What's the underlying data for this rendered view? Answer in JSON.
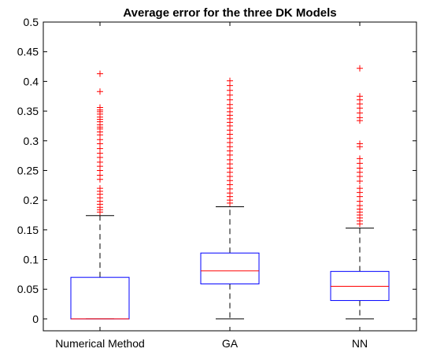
{
  "chart_data": {
    "type": "box",
    "title": "Average error for the three DK Models",
    "xlabel": "",
    "ylabel": "",
    "ylim": [
      -0.02,
      0.5
    ],
    "yticks": [
      0,
      0.05,
      0.1,
      0.15,
      0.2,
      0.25,
      0.3,
      0.35,
      0.4,
      0.45,
      0.5
    ],
    "ytick_labels": [
      "0",
      "0.05",
      "0.1",
      "0.15",
      "0.2",
      "0.25",
      "0.3",
      "0.35",
      "0.4",
      "0.45",
      "0.5"
    ],
    "categories": [
      "Numerical Method",
      "GA",
      "NN"
    ],
    "grid": false,
    "colors": {
      "box": "#0000ff",
      "median": "#ff0000",
      "whisker": "#000000",
      "outlier": "#ff0000"
    },
    "boxes": [
      {
        "category": "Numerical Method",
        "whisker_low": 0,
        "q1": 0,
        "median": 0,
        "q3": 0.07,
        "whisker_high": 0.174,
        "outliers": [
          0.413,
          0.383,
          0.356,
          0.352,
          0.349,
          0.345,
          0.34,
          0.336,
          0.332,
          0.327,
          0.323,
          0.32,
          0.315,
          0.31,
          0.302,
          0.295,
          0.287,
          0.279,
          0.272,
          0.264,
          0.257,
          0.25,
          0.242,
          0.235,
          0.22,
          0.215,
          0.21,
          0.204,
          0.198,
          0.193,
          0.188,
          0.184,
          0.18
        ]
      },
      {
        "category": "GA",
        "whisker_low": 0,
        "q1": 0.059,
        "median": 0.081,
        "q3": 0.111,
        "whisker_high": 0.189,
        "outliers": [
          0.401,
          0.393,
          0.385,
          0.377,
          0.369,
          0.361,
          0.355,
          0.349,
          0.343,
          0.337,
          0.331,
          0.325,
          0.318,
          0.311,
          0.304,
          0.297,
          0.29,
          0.283,
          0.276,
          0.268,
          0.261,
          0.254,
          0.247,
          0.24,
          0.233,
          0.226,
          0.219,
          0.212,
          0.206,
          0.2,
          0.195
        ]
      },
      {
        "category": "NN",
        "whisker_low": 0,
        "q1": 0.031,
        "median": 0.055,
        "q3": 0.08,
        "whisker_high": 0.153,
        "outliers": [
          0.422,
          0.375,
          0.369,
          0.362,
          0.355,
          0.347,
          0.339,
          0.334,
          0.295,
          0.29,
          0.27,
          0.262,
          0.254,
          0.247,
          0.24,
          0.232,
          0.22,
          0.213,
          0.206,
          0.198,
          0.191,
          0.185,
          0.18,
          0.175,
          0.17,
          0.165,
          0.16
        ]
      }
    ]
  }
}
